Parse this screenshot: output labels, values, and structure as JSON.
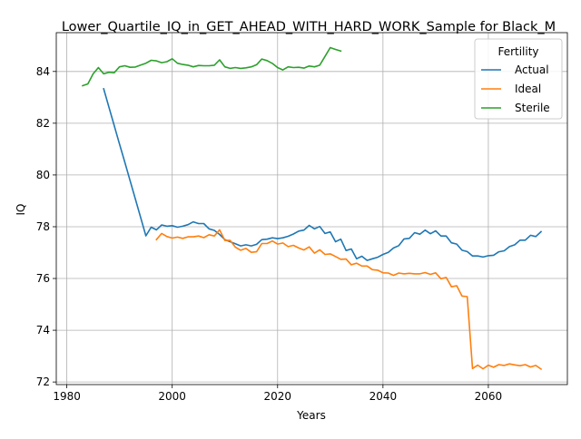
{
  "chart_data": {
    "type": "line",
    "title": "Lower_Quartile_IQ_in_GET_AHEAD_WITH_HARD_WORK_Sample for Black_M",
    "xlabel": "Years",
    "ylabel": "IQ",
    "xlim": [
      1978,
      2075
    ],
    "ylim": [
      71.9,
      85.5
    ],
    "grid": true,
    "legend": {
      "title": "Fertility",
      "placement": "top-right"
    },
    "xticks": [
      1980,
      2000,
      2020,
      2040,
      2060
    ],
    "yticks": [
      72,
      74,
      76,
      78,
      80,
      82,
      84
    ],
    "series": [
      {
        "name": "Actual",
        "color": "#1f77b4",
        "x": [
          1987,
          1988,
          1989,
          1990,
          1991,
          1992,
          1993,
          1994,
          1995,
          1996,
          1997,
          1998,
          1999,
          2000,
          2001,
          2002,
          2003,
          2004,
          2005,
          2006,
          2007,
          2008,
          2009,
          2010,
          2011,
          2012,
          2013,
          2014,
          2015,
          2016,
          2017,
          2018,
          2019,
          2020,
          2021,
          2022,
          2023,
          2024,
          2025,
          2026,
          2027,
          2028,
          2029,
          2030,
          2031,
          2032,
          2033,
          2034,
          2035,
          2036,
          2037,
          2038,
          2039,
          2040,
          2041,
          2042,
          2043,
          2044,
          2045,
          2046,
          2047,
          2048,
          2049,
          2050,
          2051,
          2052,
          2053,
          2054,
          2055,
          2056,
          2057,
          2058,
          2059,
          2060,
          2061,
          2062,
          2063,
          2064,
          2065,
          2066,
          2067,
          2068,
          2069,
          2070
        ],
        "y": [
          83.33,
          82.62,
          81.91,
          81.2,
          80.49,
          79.78,
          79.07,
          78.36,
          77.65,
          77.98,
          77.88,
          78.07,
          78.02,
          78.04,
          77.98,
          78.02,
          78.08,
          78.19,
          78.12,
          78.12,
          77.92,
          77.86,
          77.7,
          77.5,
          77.42,
          77.34,
          77.26,
          77.3,
          77.26,
          77.32,
          77.5,
          77.52,
          77.57,
          77.54,
          77.57,
          77.63,
          77.72,
          77.83,
          77.87,
          78.05,
          77.92,
          78.01,
          77.74,
          77.8,
          77.42,
          77.52,
          77.08,
          77.14,
          76.76,
          76.86,
          76.7,
          76.76,
          76.82,
          76.93,
          77.01,
          77.18,
          77.27,
          77.53,
          77.55,
          77.77,
          77.71,
          77.87,
          77.73,
          77.84,
          77.64,
          77.64,
          77.38,
          77.33,
          77.09,
          77.04,
          76.87,
          76.87,
          76.83,
          76.88,
          76.9,
          77.03,
          77.07,
          77.23,
          77.3,
          77.48,
          77.48,
          77.67,
          77.62,
          77.81
        ]
      },
      {
        "name": "Ideal",
        "color": "#ff7f0e",
        "x": [
          1997,
          1998,
          1999,
          2000,
          2001,
          2002,
          2003,
          2004,
          2005,
          2006,
          2007,
          2008,
          2009,
          2010,
          2011,
          2012,
          2013,
          2014,
          2015,
          2016,
          2017,
          2018,
          2019,
          2020,
          2021,
          2022,
          2023,
          2024,
          2025,
          2026,
          2027,
          2028,
          2029,
          2030,
          2031,
          2032,
          2033,
          2034,
          2035,
          2036,
          2037,
          2038,
          2039,
          2040,
          2041,
          2042,
          2043,
          2044,
          2045,
          2046,
          2047,
          2048,
          2049,
          2050,
          2051,
          2052,
          2053,
          2054,
          2055,
          2056,
          2057,
          2058,
          2059,
          2060,
          2061,
          2062,
          2063,
          2064,
          2065,
          2066,
          2067,
          2068,
          2069,
          2070
        ],
        "y": [
          77.5,
          77.74,
          77.62,
          77.56,
          77.6,
          77.55,
          77.61,
          77.61,
          77.64,
          77.58,
          77.69,
          77.64,
          77.88,
          77.47,
          77.47,
          77.21,
          77.09,
          77.16,
          77.01,
          77.03,
          77.35,
          77.35,
          77.45,
          77.33,
          77.37,
          77.23,
          77.28,
          77.18,
          77.1,
          77.22,
          76.98,
          77.11,
          76.93,
          76.95,
          76.85,
          76.74,
          76.75,
          76.53,
          76.59,
          76.48,
          76.48,
          76.34,
          76.32,
          76.22,
          76.21,
          76.12,
          76.21,
          76.18,
          76.2,
          76.18,
          76.18,
          76.23,
          76.16,
          76.22,
          75.99,
          76.04,
          75.68,
          75.72,
          75.32,
          75.3,
          72.52,
          72.65,
          72.51,
          72.65,
          72.57,
          72.67,
          72.64,
          72.7,
          72.66,
          72.63,
          72.67,
          72.58,
          72.64,
          72.5
        ]
      },
      {
        "name": "Sterile",
        "color": "#2ca02c",
        "x": [
          1983,
          1984,
          1985,
          1986,
          1987,
          1988,
          1989,
          1990,
          1991,
          1992,
          1993,
          1994,
          1995,
          1996,
          1997,
          1998,
          1999,
          2000,
          2001,
          2002,
          2003,
          2004,
          2005,
          2006,
          2007,
          2008,
          2009,
          2010,
          2011,
          2012,
          2013,
          2014,
          2015,
          2016,
          2017,
          2018,
          2019,
          2020,
          2021,
          2022,
          2023,
          2024,
          2025,
          2026,
          2027,
          2028,
          2029,
          2030,
          2031,
          2032
        ],
        "y": [
          83.45,
          83.52,
          83.91,
          84.15,
          83.91,
          83.97,
          83.95,
          84.18,
          84.22,
          84.16,
          84.17,
          84.25,
          84.32,
          84.43,
          84.41,
          84.34,
          84.38,
          84.49,
          84.32,
          84.27,
          84.24,
          84.18,
          84.23,
          84.22,
          84.22,
          84.24,
          84.45,
          84.18,
          84.12,
          84.15,
          84.12,
          84.14,
          84.18,
          84.26,
          84.48,
          84.42,
          84.31,
          84.15,
          84.06,
          84.18,
          84.15,
          84.16,
          84.13,
          84.21,
          84.18,
          84.24,
          84.58,
          84.92,
          84.85,
          84.79
        ]
      }
    ]
  }
}
